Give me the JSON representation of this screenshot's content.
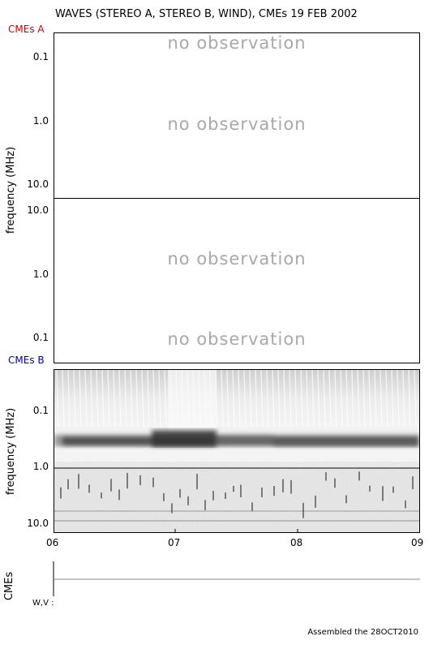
{
  "header": {
    "title": "WAVES (STEREO A, STEREO B, WIND), CMEs  19 FEB 2002"
  },
  "labels": {
    "cmes_a": "CMEs A",
    "cmes_b": "CMEs B",
    "cmes": "CMEs",
    "wv": "W,V :",
    "footer": "Assembled the 28OCT2010"
  },
  "panels": {
    "stereo_a": {
      "no_obs_1": "no observation",
      "no_obs_2": "no observation",
      "yticks": [
        "0.1",
        "1.0",
        "10.0"
      ]
    },
    "stereo_b": {
      "no_obs_1": "no observation",
      "no_obs_2": "no observation",
      "yticks": [
        "10.0",
        "1.0",
        "0.1"
      ]
    },
    "wind": {
      "yticks": [
        "0.1",
        "1.0",
        "10.0"
      ]
    }
  },
  "axes": {
    "ylabel": "frequency (MHz)",
    "xticks": [
      "06",
      "07",
      "08",
      "09"
    ]
  },
  "chart_data": {
    "type": "heatmap",
    "title": "WAVES (STEREO A, STEREO B, WIND), CMEs  19 FEB 2002",
    "xlabel": "",
    "ylabel": "frequency (MHz)",
    "x_ticks": [
      "06",
      "07",
      "08",
      "09"
    ],
    "xlim": [
      6,
      9
    ],
    "y_scale": "log",
    "panels": [
      {
        "name": "STEREO A",
        "ylim": [
          0.05,
          16
        ],
        "y_ticks": [
          0.1,
          1.0,
          10.0
        ],
        "status": "no observation"
      },
      {
        "name": "STEREO B",
        "ylim": [
          0.05,
          16
        ],
        "y_ticks": [
          10.0,
          1.0,
          0.1
        ],
        "status": "no observation"
      },
      {
        "name": "WIND",
        "ylim": [
          0.03,
          13
        ],
        "y_ticks": [
          0.1,
          1.0,
          10.0
        ],
        "features": [
          {
            "kind": "intense emission band",
            "freq_mhz": [
              0.28,
              0.55
            ],
            "time_hr": [
              6.0,
              9.0
            ]
          },
          {
            "kind": "receiver boundary",
            "freq_mhz": 1.0
          }
        ]
      }
    ]
  }
}
